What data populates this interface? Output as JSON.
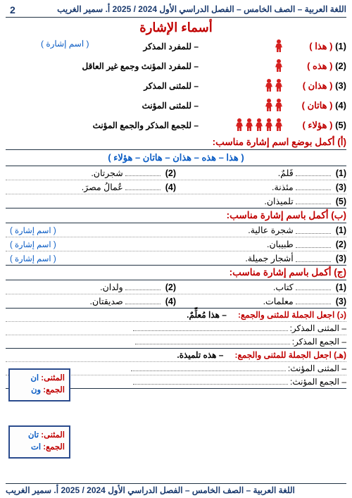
{
  "header": {
    "right": "اللغة العربية – الصف الخامس – الفصل الدراسي الأول 2024 / 2025  أ. سمير الغريب",
    "page": "2"
  },
  "title": "أسماء الإشارة",
  "subtitle": "( اسم إشارة )",
  "demonstratives": [
    {
      "n": "(1)",
      "word": "( هذا )",
      "icons": 1,
      "desc": "– للمفرد المذكر"
    },
    {
      "n": "(2)",
      "word": "( هذه )",
      "icons": 1,
      "desc": "– للمفرد المؤنث  وجمع غير العاقل"
    },
    {
      "n": "(3)",
      "word": "( هذان )",
      "icons": 2,
      "desc": "– للمثنى المذكر"
    },
    {
      "n": "(4)",
      "word": "( هاتان )",
      "icons": 2,
      "desc": "– للمثنى المؤنث"
    },
    {
      "n": "(5)",
      "word": "( هؤلاء )",
      "icons": 5,
      "desc": "– للجمع المذكر والجمع المؤنث"
    }
  ],
  "sectionA": {
    "head": "(أ) أكمل بوضع اسم إشارة مناسب:",
    "bank": "( هذا  –  هذه  –  هذان  –  هاتان  –  هؤلاء )",
    "rows": [
      {
        "l": {
          "n": "(1)",
          "t": "قَلمٌ."
        },
        "r": {
          "n": "(2)",
          "t": "شجرتان."
        }
      },
      {
        "l": {
          "n": "(3)",
          "t": "مئذنة."
        },
        "r": {
          "n": "(4)",
          "t": "عُمالُ مصرَ."
        }
      },
      {
        "l": {
          "n": "(5)",
          "t": "تلميذان."
        },
        "r": null
      }
    ]
  },
  "sectionB": {
    "head": "(ب) أكمل باسم إشارة مناسب:",
    "paren": "( اسم إشارة )",
    "rows": [
      {
        "n": "(1)",
        "t": "شجرة عالية."
      },
      {
        "n": "(2)",
        "t": "طبيبان."
      },
      {
        "n": "(3)",
        "t": "أشجار جميلة."
      }
    ]
  },
  "sectionC": {
    "head": "(ج) أكمل باسم إشارة مناسب:",
    "rows": [
      {
        "l": {
          "n": "(1)",
          "t": "كتاب."
        },
        "r": {
          "n": "(2)",
          "t": "ولدان."
        }
      },
      {
        "l": {
          "n": "(3)",
          "t": "معلمات."
        },
        "r": {
          "n": "(4)",
          "t": "صديقتان."
        }
      }
    ]
  },
  "sectionD": {
    "lead": "(د) اجعل الجملة للمثنى والجمع:",
    "example": "– هذا مُعلِّمٌ.",
    "lines": [
      "– المثنى المذكر:",
      "– الجمع المذكر:"
    ]
  },
  "sectionE": {
    "lead": "(هـ) اجعل الجملة للمثنى والجمع:",
    "example": "– هذه تلميذة.",
    "lines": [
      "– المثنى المؤنث:",
      "– الجمع المؤنث:"
    ]
  },
  "sideBox1": {
    "k1": "المثنى:",
    "v1": "ان",
    "k2": "الجمع:",
    "v2": "ون"
  },
  "sideBox2": {
    "k1": "المثنى:",
    "v1": "تان",
    "k2": "الجمع:",
    "v2": "ات"
  },
  "footer": "اللغة العربية – الصف الخامس – الفصل الدراسي الأول 2024 / 2025  أ. سمير الغريب",
  "colors": {
    "red": "#c00000",
    "blue": "#0a5cc4",
    "navy": "#1a3a6e",
    "icon": "#d6201f"
  }
}
